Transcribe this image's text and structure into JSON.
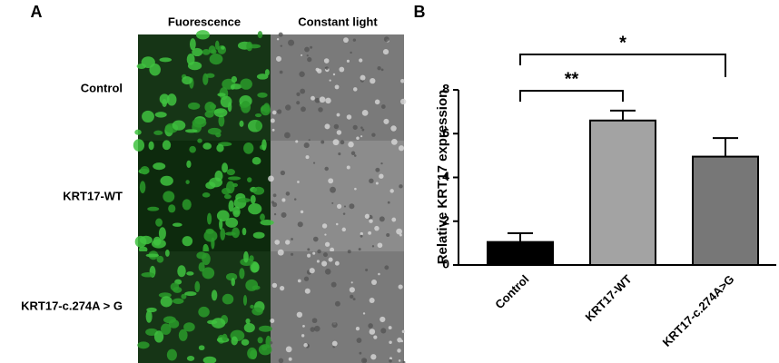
{
  "panel_a": {
    "label": "A",
    "columns": [
      "Fuorescence",
      "Constant light"
    ],
    "rows": [
      "Control",
      "KRT17-WT",
      "KRT17-c.274A > G"
    ]
  },
  "chart_data": {
    "type": "bar",
    "label": "B",
    "ylabel": "Relative KRT17 expression",
    "categories": [
      "Control",
      "KRT17-WT",
      "KRT17-c.274A>G"
    ],
    "values": [
      1.05,
      6.6,
      4.95
    ],
    "errors": [
      0.4,
      0.45,
      0.85
    ],
    "colors": [
      "#000000",
      "#a3a3a3",
      "#777777"
    ],
    "ylim": [
      0,
      8
    ],
    "yticks": [
      0,
      2,
      4,
      6,
      8
    ],
    "significance": [
      {
        "between": [
          "Control",
          "KRT17-WT"
        ],
        "label": "**"
      },
      {
        "between": [
          "Control",
          "KRT17-c.274A>G"
        ],
        "label": "*"
      }
    ]
  }
}
